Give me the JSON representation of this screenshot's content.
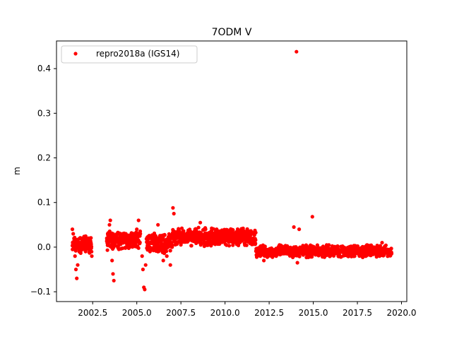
{
  "chart_data": {
    "type": "scatter",
    "title": "7ODM V",
    "xlabel": "",
    "ylabel": "m",
    "xlim": [
      2000.45,
      2020.3
    ],
    "ylim": [
      -0.122,
      0.462
    ],
    "xticks": [
      2002.5,
      2005.0,
      2007.5,
      2010.0,
      2012.5,
      2015.0,
      2017.5,
      2020.0
    ],
    "xtick_labels": [
      "2002.5",
      "2005.0",
      "2007.5",
      "2010.0",
      "2012.5",
      "2015.0",
      "2017.5",
      "2020.0"
    ],
    "yticks": [
      -0.1,
      0.0,
      0.1,
      0.2,
      0.3,
      0.4
    ],
    "ytick_labels": [
      "−0.1",
      "0.0",
      "0.1",
      "0.2",
      "0.3",
      "0.4"
    ],
    "legend": {
      "placement": "top-left",
      "entries": [
        "repro2018a (IGS14)"
      ]
    },
    "grid": false,
    "series": [
      {
        "name": "repro2018a (IGS14)",
        "color": "#ff0000",
        "marker": "circle",
        "points": [
          [
            2001.35,
            0.04
          ],
          [
            2001.4,
            0.03
          ],
          [
            2001.45,
            0.01
          ],
          [
            2001.5,
            -0.02
          ],
          [
            2001.55,
            -0.05
          ],
          [
            2001.6,
            -0.07
          ],
          [
            2001.65,
            -0.04
          ],
          [
            2001.7,
            0.0
          ],
          [
            2001.8,
            0.01
          ],
          [
            2001.9,
            0.02
          ],
          [
            2002.0,
            0.01
          ],
          [
            2002.1,
            -0.01
          ],
          [
            2002.2,
            0.0
          ],
          [
            2002.3,
            0.02
          ],
          [
            2002.4,
            0.01
          ],
          [
            2002.45,
            -0.02
          ],
          [
            2003.3,
            0.02
          ],
          [
            2003.35,
            0.03
          ],
          [
            2003.45,
            0.05
          ],
          [
            2003.5,
            0.06
          ],
          [
            2003.55,
            0.0
          ],
          [
            2003.6,
            -0.03
          ],
          [
            2003.65,
            -0.06
          ],
          [
            2003.7,
            -0.075
          ],
          [
            2003.8,
            0.02
          ],
          [
            2003.9,
            0.03
          ],
          [
            2004.0,
            0.02
          ],
          [
            2004.2,
            0.03
          ],
          [
            2004.4,
            0.02
          ],
          [
            2004.6,
            0.01
          ],
          [
            2004.8,
            0.02
          ],
          [
            2005.0,
            0.04
          ],
          [
            2005.1,
            0.06
          ],
          [
            2005.2,
            0.03
          ],
          [
            2005.3,
            -0.02
          ],
          [
            2005.35,
            -0.05
          ],
          [
            2005.4,
            -0.09
          ],
          [
            2005.45,
            -0.095
          ],
          [
            2005.5,
            -0.04
          ],
          [
            2005.6,
            0.0
          ],
          [
            2005.8,
            0.02
          ],
          [
            2006.0,
            0.01
          ],
          [
            2006.2,
            0.05
          ],
          [
            2006.4,
            0.0
          ],
          [
            2006.5,
            -0.03
          ],
          [
            2006.7,
            -0.02
          ],
          [
            2006.9,
            -0.04
          ],
          [
            2007.0,
            0.0
          ],
          [
            2007.05,
            0.088
          ],
          [
            2007.1,
            0.075
          ],
          [
            2007.3,
            0.02
          ],
          [
            2007.6,
            0.03
          ],
          [
            2008.0,
            0.02
          ],
          [
            2008.3,
            0.04
          ],
          [
            2008.6,
            0.055
          ],
          [
            2008.9,
            0.04
          ],
          [
            2009.2,
            0.03
          ],
          [
            2009.5,
            0.02
          ],
          [
            2009.8,
            0.025
          ],
          [
            2010.1,
            0.015
          ],
          [
            2010.4,
            0.02
          ],
          [
            2010.7,
            0.01
          ],
          [
            2011.0,
            0.015
          ],
          [
            2011.3,
            0.03
          ],
          [
            2011.6,
            0.02
          ],
          [
            2011.8,
            -0.01
          ],
          [
            2012.0,
            -0.02
          ],
          [
            2012.2,
            -0.03
          ],
          [
            2012.5,
            -0.01
          ],
          [
            2012.9,
            -0.02
          ],
          [
            2013.3,
            -0.01
          ],
          [
            2013.8,
            -0.005
          ],
          [
            2013.9,
            0.045
          ],
          [
            2014.05,
            0.438
          ],
          [
            2014.1,
            -0.035
          ],
          [
            2014.2,
            0.04
          ],
          [
            2014.5,
            0.0
          ],
          [
            2014.95,
            0.068
          ],
          [
            2015.2,
            -0.01
          ],
          [
            2015.7,
            -0.005
          ],
          [
            2016.2,
            0.0
          ],
          [
            2016.7,
            -0.01
          ],
          [
            2017.2,
            0.0
          ],
          [
            2017.7,
            -0.012
          ],
          [
            2018.2,
            -0.005
          ],
          [
            2018.7,
            -0.01
          ],
          [
            2018.9,
            0.01
          ],
          [
            2019.2,
            -0.005
          ],
          [
            2019.4,
            -0.012
          ]
        ]
      }
    ],
    "dense_segments": [
      {
        "x0": 2001.35,
        "x1": 2002.45,
        "center": 0.005,
        "spread": 0.02
      },
      {
        "x0": 2003.3,
        "x1": 2005.2,
        "center": 0.015,
        "spread": 0.022
      },
      {
        "x0": 2005.55,
        "x1": 2007.0,
        "center": 0.01,
        "spread": 0.025
      },
      {
        "x0": 2007.0,
        "x1": 2011.75,
        "center": 0.022,
        "spread": 0.022
      },
      {
        "x0": 2011.75,
        "x1": 2019.45,
        "center": -0.009,
        "spread": 0.015
      }
    ]
  }
}
